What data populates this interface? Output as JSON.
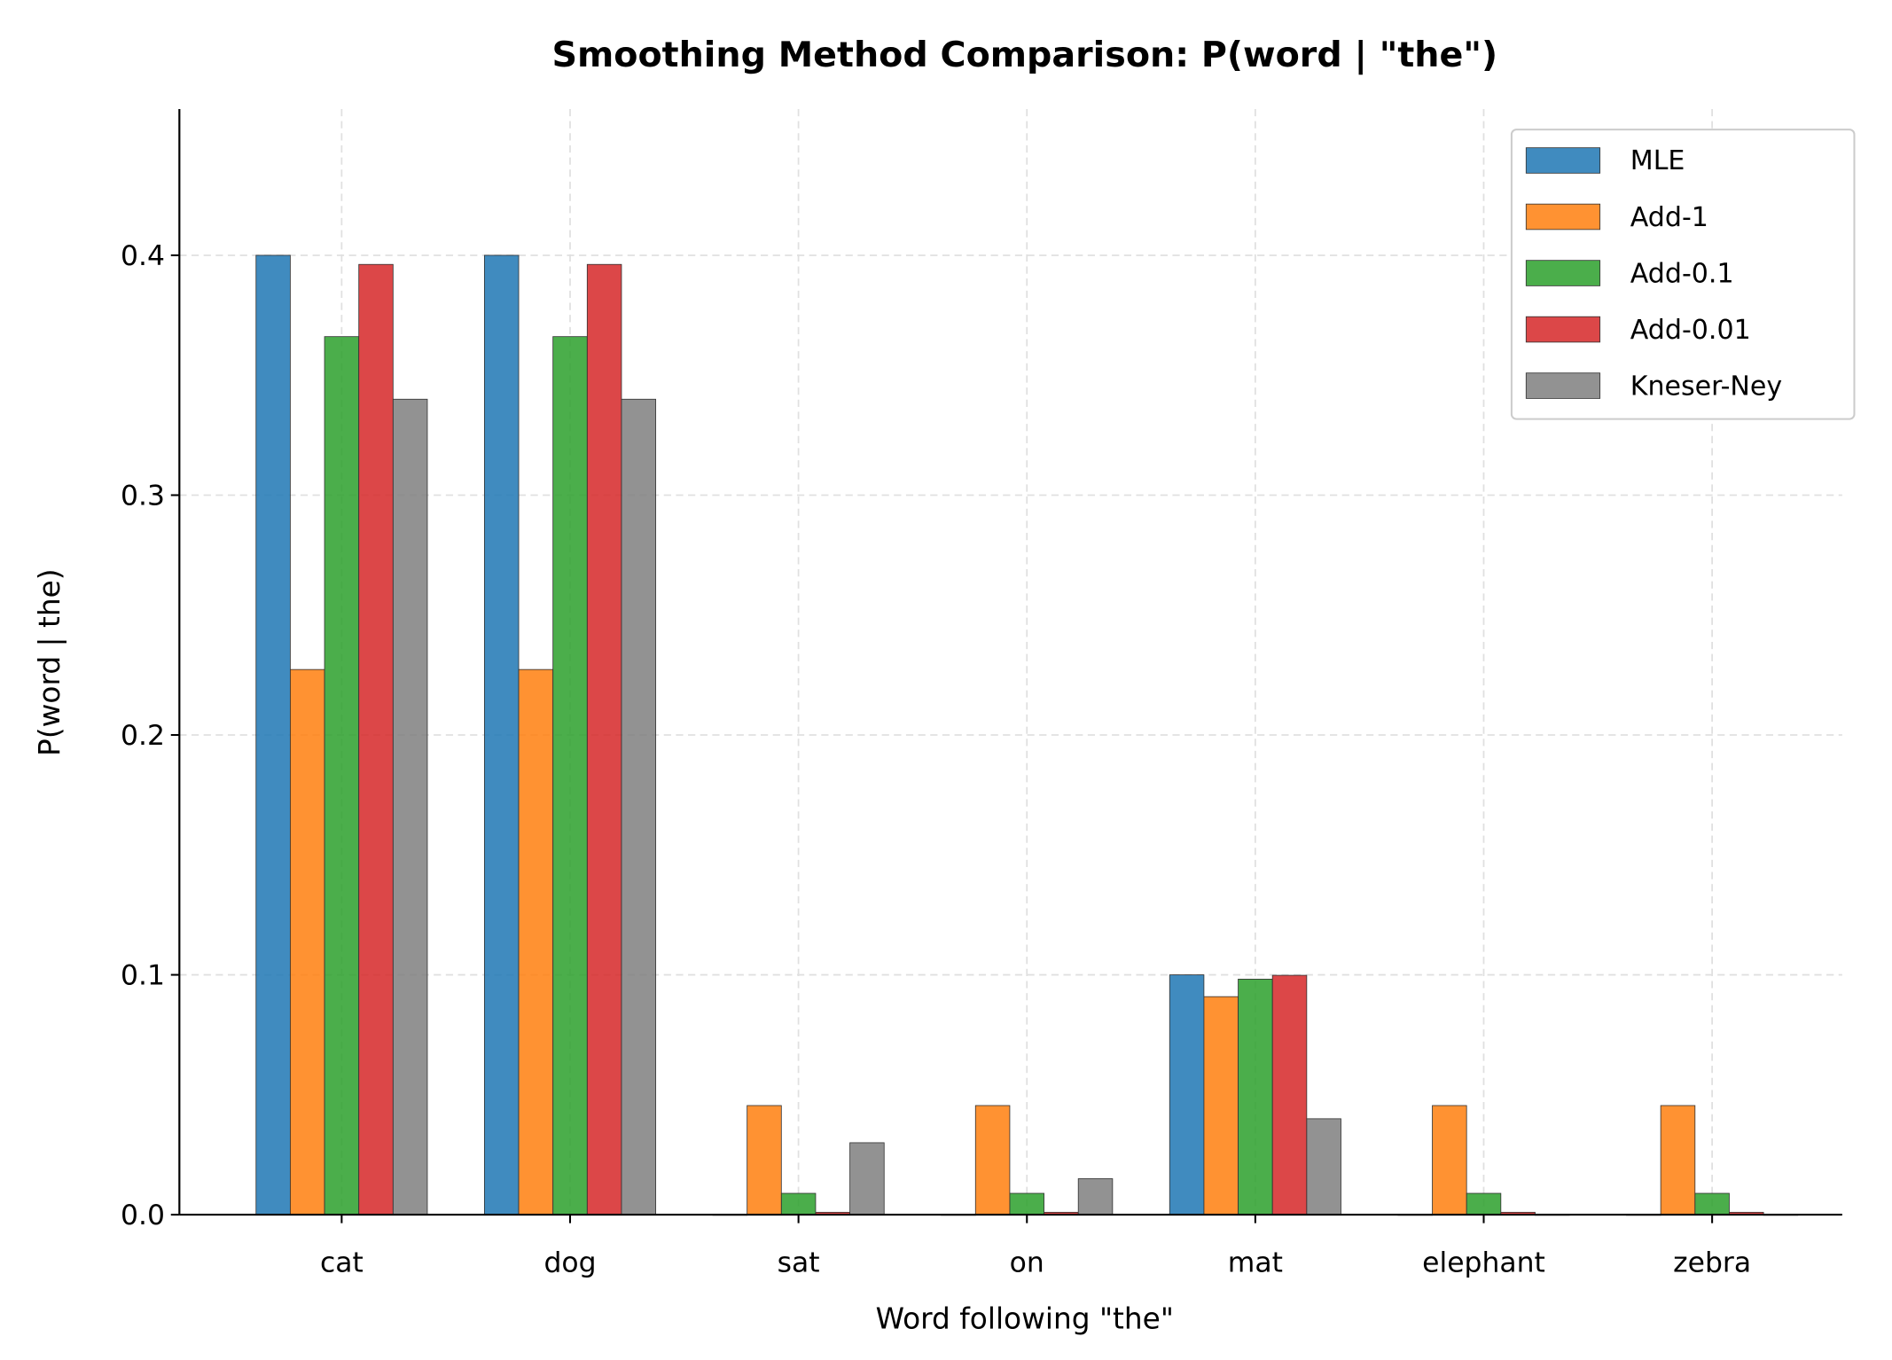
{
  "chart_data": {
    "type": "bar",
    "title": "Smoothing Method Comparison: P(word | \"the\")",
    "xlabel": "Word following \"the\"",
    "ylabel": "P(word | the)",
    "categories": [
      "cat",
      "dog",
      "sat",
      "on",
      "mat",
      "elephant",
      "zebra"
    ],
    "ylim": [
      0,
      0.461
    ],
    "yticks": [
      0.0,
      0.1,
      0.2,
      0.3,
      0.4
    ],
    "ytick_labels": [
      "0.0",
      "0.1",
      "0.2",
      "0.3",
      "0.4"
    ],
    "grid": true,
    "legend_position": "top-right",
    "series": [
      {
        "name": "MLE",
        "color": "#1f77b4",
        "values": [
          0.4,
          0.4,
          0.0,
          0.0,
          0.1,
          0.0,
          0.0
        ]
      },
      {
        "name": "Add-1",
        "color": "#ff7f0e",
        "values": [
          0.2273,
          0.2273,
          0.0455,
          0.0455,
          0.0909,
          0.0455,
          0.0455
        ]
      },
      {
        "name": "Add-0.1",
        "color": "#2ca02c",
        "values": [
          0.3661,
          0.3661,
          0.0089,
          0.0089,
          0.0982,
          0.0089,
          0.0089
        ]
      },
      {
        "name": "Add-0.01",
        "color": "#d62728",
        "values": [
          0.3962,
          0.3962,
          0.001,
          0.001,
          0.0998,
          0.001,
          0.001
        ]
      },
      {
        "name": "Kneser-Ney",
        "color": "#7f7f7f",
        "values": [
          0.34,
          0.34,
          0.03,
          0.015,
          0.04,
          0.0,
          0.0
        ]
      }
    ]
  }
}
